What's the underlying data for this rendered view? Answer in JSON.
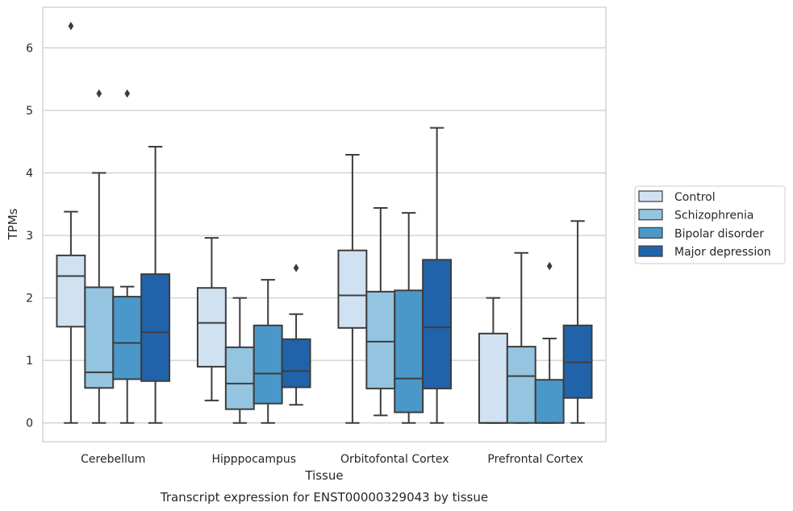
{
  "chart_data": {
    "type": "boxplot",
    "title": "",
    "caption": "Transcript expression for ENST00000329043 by tissue",
    "xlabel": "Tissue",
    "ylabel": "TPMs",
    "ylim": [
      -0.3,
      6.65
    ],
    "yticks": [
      0,
      1,
      2,
      3,
      4,
      5,
      6
    ],
    "grid": "horizontal",
    "legend_position": "right",
    "categories": [
      "Cerebellum",
      "Hipppocampus",
      "Orbitofontal Cortex",
      "Prefrontal Cortex"
    ],
    "series": [
      {
        "name": "Control",
        "color": "#d0e1f2",
        "boxes": [
          {
            "whisker_low": 0,
            "q1": 1.54,
            "median": 2.35,
            "q3": 2.68,
            "whisker_high": 3.38,
            "outliers": [
              6.35
            ]
          },
          {
            "whisker_low": 0.36,
            "q1": 0.9,
            "median": 1.6,
            "q3": 2.16,
            "whisker_high": 2.96,
            "outliers": []
          },
          {
            "whisker_low": 0,
            "q1": 1.52,
            "median": 2.04,
            "q3": 2.76,
            "whisker_high": 4.29,
            "outliers": []
          },
          {
            "whisker_low": 0,
            "q1": 0,
            "median": 0,
            "q3": 1.43,
            "whisker_high": 2.0,
            "outliers": []
          }
        ]
      },
      {
        "name": "Schizophrenia",
        "color": "#94c4df",
        "boxes": [
          {
            "whisker_low": 0,
            "q1": 0.56,
            "median": 0.81,
            "q3": 2.17,
            "whisker_high": 4.0,
            "outliers": [
              5.27
            ]
          },
          {
            "whisker_low": 0,
            "q1": 0.22,
            "median": 0.63,
            "q3": 1.21,
            "whisker_high": 2.0,
            "outliers": []
          },
          {
            "whisker_low": 0.12,
            "q1": 0.55,
            "median": 1.3,
            "q3": 2.1,
            "whisker_high": 3.44,
            "outliers": []
          },
          {
            "whisker_low": 0,
            "q1": 0,
            "median": 0.75,
            "q3": 1.22,
            "whisker_high": 2.72,
            "outliers": []
          }
        ]
      },
      {
        "name": "Bipolar disorder",
        "color": "#4a98c9",
        "boxes": [
          {
            "whisker_low": 0,
            "q1": 0.7,
            "median": 1.28,
            "q3": 2.02,
            "whisker_high": 2.18,
            "outliers": [
              5.27
            ]
          },
          {
            "whisker_low": 0,
            "q1": 0.31,
            "median": 0.79,
            "q3": 1.56,
            "whisker_high": 2.29,
            "outliers": []
          },
          {
            "whisker_low": 0,
            "q1": 0.17,
            "median": 0.71,
            "q3": 2.12,
            "whisker_high": 3.36,
            "outliers": []
          },
          {
            "whisker_low": 0,
            "q1": 0,
            "median": 0,
            "q3": 0.69,
            "whisker_high": 1.35,
            "outliers": [
              2.51
            ]
          }
        ]
      },
      {
        "name": "Major depression",
        "color": "#2163aa",
        "boxes": [
          {
            "whisker_low": 0,
            "q1": 0.67,
            "median": 1.45,
            "q3": 2.38,
            "whisker_high": 4.42,
            "outliers": []
          },
          {
            "whisker_low": 0.29,
            "q1": 0.57,
            "median": 0.83,
            "q3": 1.34,
            "whisker_high": 1.74,
            "outliers": [
              2.48
            ]
          },
          {
            "whisker_low": 0,
            "q1": 0.55,
            "median": 1.53,
            "q3": 2.61,
            "whisker_high": 4.72,
            "outliers": []
          },
          {
            "whisker_low": 0,
            "q1": 0.4,
            "median": 0.97,
            "q3": 1.56,
            "whisker_high": 3.23,
            "outliers": []
          }
        ]
      }
    ]
  }
}
